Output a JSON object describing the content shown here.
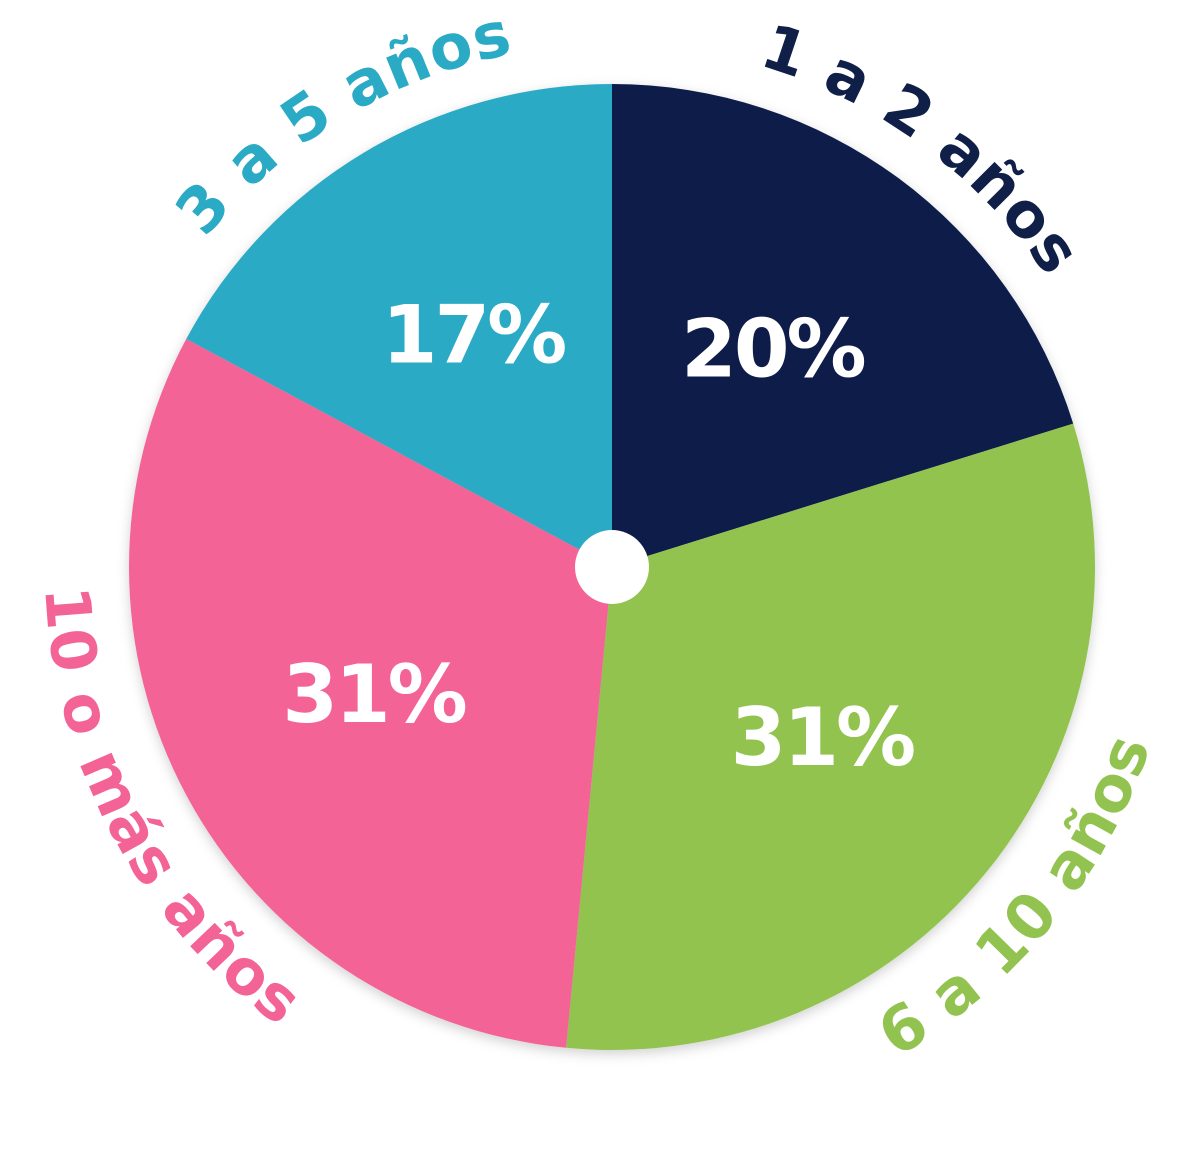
{
  "chart_data": {
    "type": "pie",
    "title": "",
    "slices": [
      {
        "label": "1 a 2 años",
        "value": 20,
        "value_label": "20%",
        "color": "#0f1f48"
      },
      {
        "label": "6 a 10 años",
        "value": 31,
        "value_label": "31%",
        "color": "#92c350"
      },
      {
        "label": "10 o más años",
        "value": 31,
        "value_label": "31%",
        "color": "#f36396"
      },
      {
        "label": "3 a 5 años",
        "value": 17,
        "value_label": "17%",
        "color": "#2aaac4"
      }
    ],
    "center_hole_color": "#ffffff",
    "start_angle_deg": -90,
    "direction": "clockwise"
  }
}
